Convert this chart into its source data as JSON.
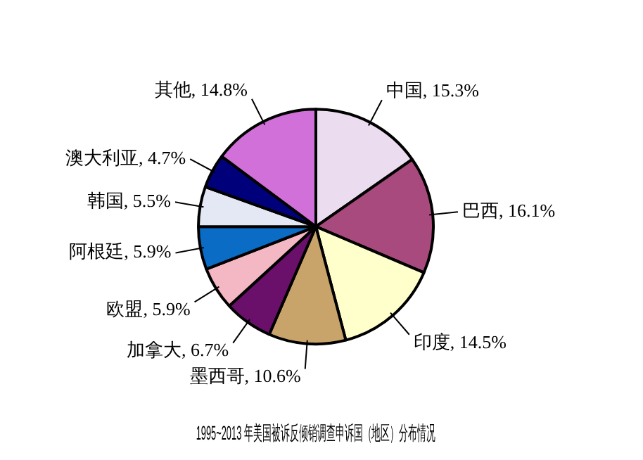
{
  "chart_data": {
    "type": "pie",
    "title": "1995~2013 年美国被诉反倾销调查申诉国（地区）分布情况",
    "categories": [
      "中国",
      "巴西",
      "印度",
      "墨西哥",
      "加拿大",
      "欧盟",
      "阿根廷",
      "韩国",
      "澳大利亚",
      "其他"
    ],
    "values": [
      15.3,
      16.1,
      14.5,
      10.6,
      6.7,
      5.9,
      5.9,
      5.5,
      4.7,
      14.8
    ],
    "colors": [
      "#ecdcf0",
      "#a84a7e",
      "#ffffcc",
      "#c8a46a",
      "#6a0f6a",
      "#f4b8c4",
      "#0a6cc4",
      "#e4e8f4",
      "#00007a",
      "#d070d8"
    ],
    "value_labels": [
      "15.3%",
      "16.1%",
      "14.5%",
      "10.6%",
      "6.7%",
      "5.9%",
      "5.9%",
      "5.5%",
      "4.7%",
      "14.8%"
    ],
    "data_labels": true,
    "legend": false
  }
}
